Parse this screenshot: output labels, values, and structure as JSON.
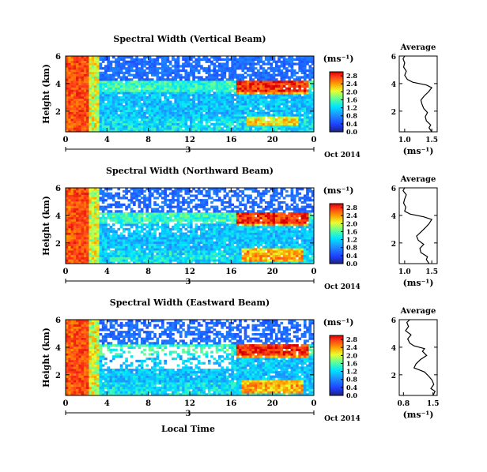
{
  "figure": {
    "date_label": "Oct 2014",
    "xlabel": "Local Time",
    "colorbar_unit": "(ms⁻¹)",
    "profile_title": "Average",
    "profile_xunit": "(ms⁻¹)"
  },
  "chart_data": [
    {
      "type": "heatmap",
      "title": "Spectral Width (Vertical Beam)",
      "ylabel": "Height (km)",
      "xlabel": "",
      "xticks": [
        "0",
        "4",
        "8",
        "12",
        "16",
        "20",
        "0"
      ],
      "xrange": [
        0,
        24
      ],
      "date_day_label": "3",
      "yticks": [
        "2",
        "4",
        "6"
      ],
      "yrange": [
        0.5,
        6
      ],
      "colorbar": {
        "ticks": [
          "0.0",
          "0.4",
          "0.8",
          "1.2",
          "1.6",
          "2.0",
          "2.4",
          "2.8"
        ],
        "range": [
          0,
          3.0
        ]
      },
      "profile": {
        "xticks": [
          "1.0",
          "1.5"
        ],
        "xrange": [
          0.9,
          1.6
        ],
        "yticks": [
          "2",
          "4",
          "6"
        ],
        "height_km": [
          0.5,
          0.8,
          1.0,
          1.3,
          1.6,
          1.9,
          2.2,
          2.5,
          2.8,
          3.1,
          3.4,
          3.7,
          3.9,
          4.1,
          4.3,
          4.6,
          4.9,
          5.2,
          5.5,
          5.8,
          6.0
        ],
        "width": [
          1.5,
          1.45,
          1.48,
          1.4,
          1.38,
          1.42,
          1.35,
          1.32,
          1.3,
          1.36,
          1.44,
          1.5,
          1.4,
          1.15,
          1.05,
          1.0,
          1.03,
          0.98,
          1.0,
          0.97,
          1.0
        ]
      }
    },
    {
      "type": "heatmap",
      "title": "Spectral Width (Northward Beam)",
      "ylabel": "Height (km)",
      "xlabel": "",
      "xticks": [
        "0",
        "4",
        "8",
        "12",
        "16",
        "20",
        "0"
      ],
      "xrange": [
        0,
        24
      ],
      "date_day_label": "3",
      "yticks": [
        "2",
        "4",
        "6"
      ],
      "yrange": [
        0.5,
        6
      ],
      "colorbar": {
        "ticks": [
          "0.0",
          "0.4",
          "0.8",
          "1.2",
          "1.6",
          "2.0",
          "2.4",
          "2.8"
        ],
        "range": [
          0,
          3.0
        ]
      },
      "profile": {
        "xticks": [
          "1.0",
          "1.5"
        ],
        "xrange": [
          0.9,
          1.6
        ],
        "yticks": [
          "2",
          "4",
          "6"
        ],
        "height_km": [
          0.5,
          0.8,
          1.0,
          1.3,
          1.6,
          1.9,
          2.2,
          2.5,
          2.8,
          3.1,
          3.4,
          3.7,
          3.9,
          4.1,
          4.3,
          4.6,
          4.9,
          5.2,
          5.5,
          5.8,
          6.0
        ],
        "width": [
          1.45,
          1.4,
          1.42,
          1.3,
          1.28,
          1.35,
          1.25,
          1.22,
          1.3,
          1.38,
          1.45,
          1.5,
          1.35,
          1.1,
          1.0,
          1.02,
          0.98,
          1.0,
          1.03,
          0.97,
          1.0
        ]
      }
    },
    {
      "type": "heatmap",
      "title": "Spectral Width (Eastward Beam)",
      "ylabel": "Height (km)",
      "xlabel": "Local Time",
      "xticks": [
        "0",
        "4",
        "8",
        "12",
        "16",
        "20",
        "0"
      ],
      "xrange": [
        0,
        24
      ],
      "date_day_label": "3",
      "yticks": [
        "2",
        "4",
        "6"
      ],
      "yrange": [
        0.5,
        6
      ],
      "colorbar": {
        "ticks": [
          "0.0",
          "0.4",
          "0.8",
          "1.2",
          "1.6",
          "2.0",
          "2.4",
          "2.8"
        ],
        "range": [
          0,
          3.0
        ]
      },
      "profile": {
        "xticks": [
          "0.8",
          "1.5"
        ],
        "xrange": [
          0.7,
          1.6
        ],
        "yticks": [
          "2",
          "4",
          "6"
        ],
        "height_km": [
          0.5,
          0.8,
          1.0,
          1.3,
          1.6,
          1.9,
          2.2,
          2.5,
          2.8,
          3.1,
          3.4,
          3.7,
          3.9,
          4.1,
          4.3,
          4.6,
          4.9,
          5.2,
          5.5,
          5.8,
          6.0
        ],
        "width": [
          1.5,
          1.55,
          1.45,
          1.52,
          1.48,
          1.4,
          1.3,
          1.05,
          1.1,
          1.2,
          1.35,
          1.25,
          1.3,
          1.05,
          0.95,
          0.9,
          0.98,
          0.85,
          0.92,
          0.88,
          0.95
        ]
      }
    }
  ]
}
